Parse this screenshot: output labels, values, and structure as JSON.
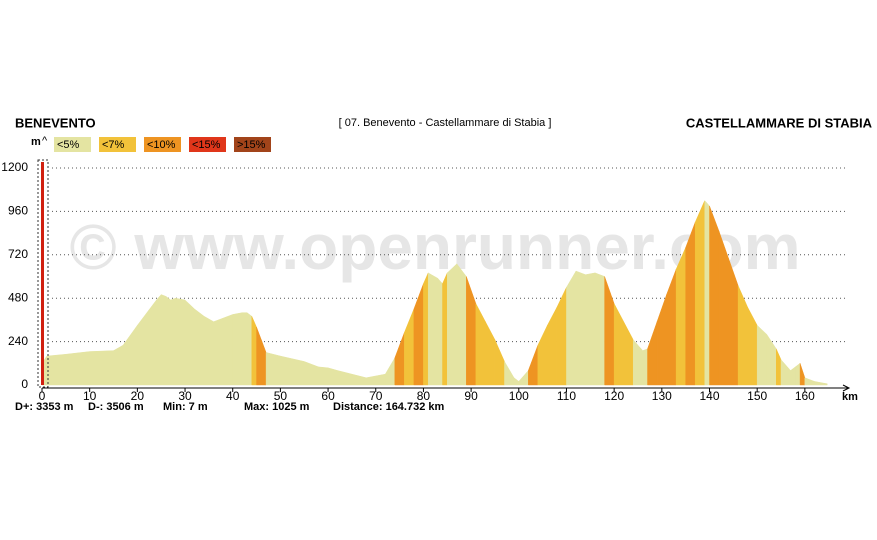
{
  "chart_data": {
    "type": "area",
    "title": "[ 07. Benevento - Castellammare di Stabia ]",
    "start_label": "BENEVENTO",
    "end_label": "CASTELLAMMARE DI STABIA",
    "y_label": "m",
    "x_label": "km",
    "watermark": "© www.openrunner.com",
    "stats": [
      "D+: 3353 m",
      "D-: 3506 m",
      "Min: 7 m",
      "Max: 1025 m",
      "Distance: 164.732 km"
    ],
    "legend": [
      {
        "label": "<5%",
        "color": "#e4e4a2",
        "max": 5
      },
      {
        "label": "<7%",
        "color": "#f2c23a",
        "max": 7
      },
      {
        "label": "<10%",
        "color": "#ee9422",
        "max": 10
      },
      {
        "label": "<15%",
        "color": "#e0361a",
        "max": 15
      },
      {
        "label": ">15%",
        "color": "#a2441a"
      }
    ],
    "x": [
      0,
      1,
      5,
      10,
      15,
      17,
      20,
      22,
      24,
      25,
      26,
      27,
      28,
      30,
      32,
      34,
      36,
      38,
      40,
      42,
      43,
      44,
      45,
      46,
      47,
      50,
      55,
      58,
      60,
      62,
      65,
      68,
      70,
      72,
      74,
      76,
      78,
      80,
      81,
      83,
      84,
      85,
      87,
      89,
      91,
      93,
      95,
      97,
      99,
      100,
      102,
      104,
      106,
      108,
      110,
      112,
      114,
      116,
      118,
      120,
      122,
      124,
      126,
      127,
      129,
      131,
      133,
      135,
      137,
      139,
      140,
      142,
      144,
      146,
      148,
      150,
      152,
      154,
      155,
      156,
      157,
      158,
      159,
      160,
      162,
      164,
      164.7
    ],
    "series": [
      {
        "name": "Elevation",
        "values": [
          120,
          160,
          170,
          185,
          190,
          220,
          330,
          400,
          470,
          500,
          490,
          470,
          480,
          470,
          420,
          380,
          350,
          370,
          390,
          400,
          400,
          380,
          320,
          250,
          180,
          160,
          130,
          100,
          95,
          80,
          60,
          40,
          50,
          60,
          150,
          290,
          420,
          560,
          620,
          590,
          560,
          620,
          670,
          600,
          450,
          350,
          250,
          130,
          40,
          20,
          80,
          220,
          330,
          430,
          540,
          630,
          610,
          620,
          600,
          450,
          350,
          250,
          190,
          200,
          350,
          500,
          640,
          760,
          900,
          1020,
          990,
          850,
          700,
          550,
          430,
          330,
          280,
          200,
          140,
          110,
          80,
          100,
          120,
          40,
          20,
          10,
          7
        ]
      }
    ],
    "xlim": [
      0,
      168
    ],
    "xticks": [
      0,
      10,
      20,
      30,
      40,
      50,
      60,
      70,
      80,
      90,
      100,
      110,
      120,
      130,
      140,
      150,
      160
    ],
    "ylim": [
      0,
      1200
    ],
    "yticks": [
      0,
      240,
      480,
      720,
      960,
      1200
    ],
    "grid": true
  }
}
